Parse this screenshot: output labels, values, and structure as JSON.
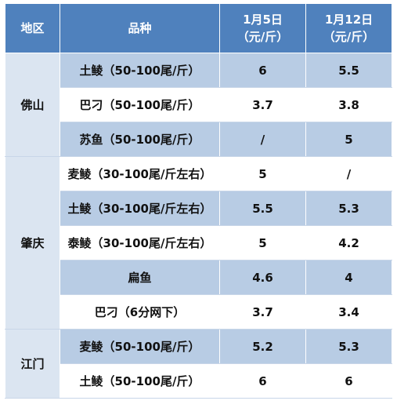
{
  "header": {
    "region": "地区",
    "variety": "品种",
    "date1_line1": "1月5日",
    "date1_line2": "（元/斤）",
    "date2_line1": "1月12日",
    "date2_line2": "（元/斤）"
  },
  "rows": [
    {
      "region": "佛山",
      "variety": "土鲮（50-100尾/斤）",
      "v1": "6",
      "v2": "5.5"
    },
    {
      "variety": "巴刁（50-100尾/斤）",
      "v1": "3.7",
      "v2": "3.8"
    },
    {
      "variety": "苏鱼（50-100尾/斤）",
      "v1": "/",
      "v2": "5"
    },
    {
      "region": "肇庆",
      "variety": "麦鲮（30-100尾/斤左右）",
      "v1": "5",
      "v2": "/"
    },
    {
      "variety": "土鲮（30-100尾/斤左右）",
      "v1": "5.5",
      "v2": "5.3"
    },
    {
      "variety": "泰鲮（30-100尾/斤左右）",
      "v1": "5",
      "v2": "4.2"
    },
    {
      "variety": "扁鱼",
      "v1": "4.6",
      "v2": "4"
    },
    {
      "variety": "巴刁（6分网下）",
      "v1": "3.7",
      "v2": "3.4"
    },
    {
      "region": "江门",
      "variety": "麦鲮（50-100尾/斤）",
      "v1": "5.2",
      "v2": "5.3"
    },
    {
      "variety": "土鲮（50-100尾/斤）",
      "v1": "6",
      "v2": "6"
    }
  ]
}
